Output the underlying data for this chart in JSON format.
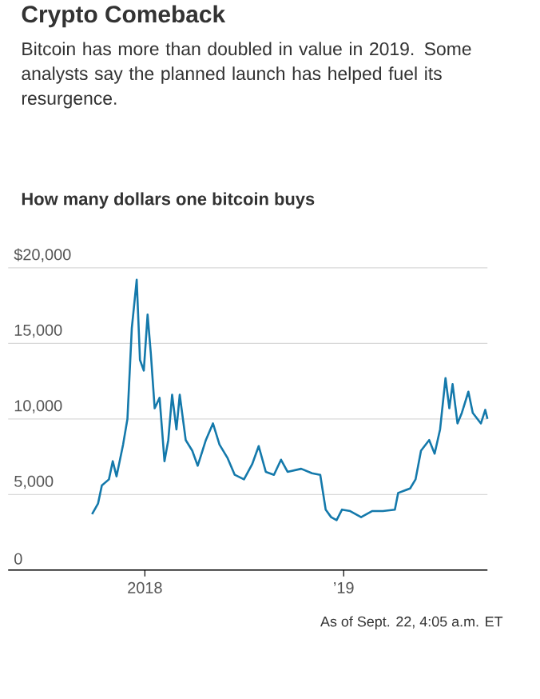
{
  "chart_data": {
    "type": "line",
    "title": "Crypto Comeback",
    "subtitle": "Bitcoin has more than doubled in value in 2019. Some analysts say the planned launch has helped fuel its resurgence.",
    "ylabel": "How many dollars one bitcoin buys",
    "annotations": [
      "As of Sept. 22, 4:05 a.m. ET"
    ],
    "x": [
      "2017-09-26",
      "2017-10-07",
      "2017-10-14",
      "2017-10-27",
      "2017-11-03",
      "2017-11-10",
      "2017-11-22",
      "2017-11-30",
      "2017-12-08",
      "2017-12-17",
      "2017-12-23",
      "2017-12-30",
      "2018-01-06",
      "2018-01-12",
      "2018-01-19",
      "2018-01-28",
      "2018-02-06",
      "2018-02-13",
      "2018-02-20",
      "2018-02-28",
      "2018-03-06",
      "2018-03-17",
      "2018-03-29",
      "2018-04-08",
      "2018-04-23",
      "2018-05-06",
      "2018-05-18",
      "2018-06-02",
      "2018-06-15",
      "2018-07-02",
      "2018-07-17",
      "2018-07-29",
      "2018-08-11",
      "2018-08-26",
      "2018-09-08",
      "2018-09-20",
      "2018-10-15",
      "2018-11-04",
      "2018-11-19",
      "2018-11-29",
      "2018-12-09",
      "2018-12-19",
      "2018-12-29",
      "2019-01-13",
      "2019-02-02",
      "2019-02-22",
      "2019-03-14",
      "2019-04-05",
      "2019-04-11",
      "2019-05-03",
      "2019-05-13",
      "2019-05-23",
      "2019-06-07",
      "2019-06-17",
      "2019-06-27",
      "2019-07-07",
      "2019-07-14",
      "2019-07-20",
      "2019-07-29",
      "2019-08-06",
      "2019-08-18",
      "2019-08-26",
      "2019-09-10",
      "2019-09-18",
      "2019-09-22"
    ],
    "values": [
      3700,
      4400,
      5600,
      6000,
      7200,
      6200,
      8300,
      10000,
      16000,
      19200,
      13900,
      13200,
      16900,
      14300,
      10700,
      11400,
      7200,
      8600,
      11600,
      9300,
      11600,
      8600,
      7900,
      6900,
      8600,
      9700,
      8300,
      7400,
      6300,
      6000,
      7000,
      8200,
      6500,
      6300,
      7300,
      6500,
      6700,
      6400,
      6300,
      4000,
      3500,
      3300,
      4000,
      3900,
      3500,
      3900,
      3900,
      4000,
      5100,
      5400,
      6000,
      7900,
      8600,
      7700,
      9300,
      12700,
      10700,
      12300,
      9700,
      10400,
      11800,
      10400,
      9700,
      10600,
      10000
    ],
    "color": "#1479ab",
    "xlim": [
      "2017-04-25",
      "2019-09-22"
    ],
    "ylim": [
      0,
      20000
    ],
    "xticks": [
      {
        "value": "2018-01-01",
        "label": "2018"
      },
      {
        "value": "2019-01-01",
        "label": "’19"
      }
    ],
    "yticks": [
      0,
      {
        "value": 5000,
        "label": "5,000"
      },
      {
        "value": 10000,
        "label": "10,000"
      },
      {
        "value": 15000,
        "label": "15,000"
      },
      {
        "value": 20000,
        "label": "$20,000"
      }
    ],
    "grid": "y"
  }
}
